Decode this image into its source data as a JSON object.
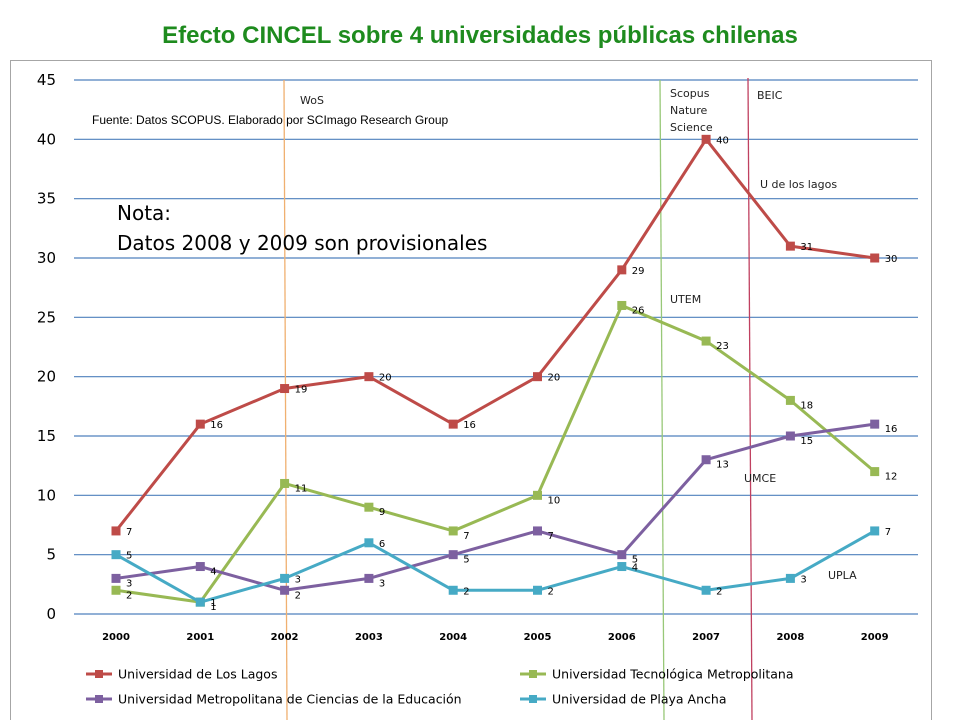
{
  "title": "Efecto CINCEL sobre 4 universidades públicas chilenas",
  "chart_data": {
    "type": "line",
    "categories": [
      "2000",
      "2001",
      "2002",
      "2003",
      "2004",
      "2005",
      "2006",
      "2007",
      "2008",
      "2009"
    ],
    "ylim": [
      0,
      45
    ],
    "yticks": [
      0,
      5,
      10,
      15,
      20,
      25,
      30,
      35,
      40,
      45
    ],
    "grid": true,
    "legend_position": "bottom",
    "series": [
      {
        "name": "Universidad de Los Lagos",
        "color": "#be4b48",
        "values": [
          7,
          16,
          19,
          20,
          16,
          20,
          29,
          40,
          31,
          30
        ]
      },
      {
        "name": "Universidad Tecnológica Metropolitana",
        "color": "#98b954",
        "values": [
          2,
          1,
          11,
          9,
          7,
          10,
          26,
          23,
          18,
          12
        ]
      },
      {
        "name": "Universidad Metropolitana de Ciencias de la Educación",
        "color": "#7d60a0",
        "values": [
          3,
          4,
          2,
          3,
          5,
          7,
          5,
          13,
          15,
          16
        ]
      },
      {
        "name": "Universidad de Playa Ancha",
        "color": "#46aac5",
        "values": [
          5,
          1,
          3,
          6,
          2,
          2,
          4,
          2,
          3,
          7
        ]
      }
    ],
    "annotations": {
      "source": "Fuente: Datos SCOPUS. Elaborado por SCImago Research Group",
      "note_line1": "Nota:",
      "note_line2": "Datos 2008 y 2009 son provisionales",
      "wos": "WoS",
      "scopus_1": "Scopus",
      "scopus_2": "Nature",
      "scopus_3": "Science",
      "beic": "BEIC",
      "u_lagos": "U de los lagos",
      "utem": "UTEM",
      "umce": "UMCE",
      "upla": "UPLA"
    },
    "vertical_lines": [
      {
        "label": "wos",
        "color": "#f0b070"
      },
      {
        "label": "scopus",
        "color": "#98c878"
      },
      {
        "label": "beic",
        "color": "#c04060"
      }
    ]
  }
}
